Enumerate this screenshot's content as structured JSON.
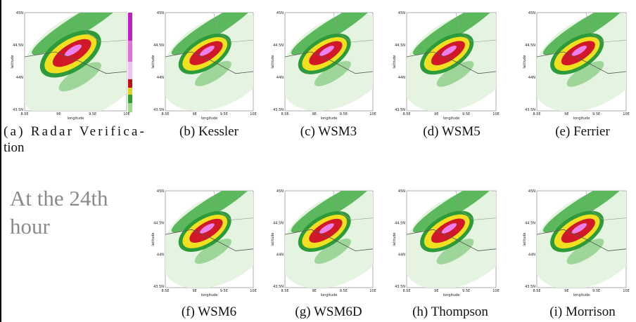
{
  "figure": {
    "panels": [
      {
        "caption": "(a) Radar Verifica-",
        "caption_cont": "tion"
      },
      {
        "caption": "(b) Kessler"
      },
      {
        "caption": "(c) WSM3"
      },
      {
        "caption": "(d) WSM5"
      },
      {
        "caption": "(e) Ferrier"
      },
      {
        "caption": "(f) WSM6"
      },
      {
        "caption": "(g) WSM6D"
      },
      {
        "caption": "(h) Thompson"
      },
      {
        "caption": "(i) Morrison"
      }
    ],
    "side_note": [
      "At the 24th",
      "hour"
    ],
    "axes": {
      "y_ticks": [
        "45N",
        "44.5N",
        "44N",
        "43.5N"
      ],
      "x_ticks": [
        "8.5E",
        "9E",
        "9.5E",
        "10E"
      ],
      "y_label": "latitude",
      "x_label": "longitude"
    }
  }
}
